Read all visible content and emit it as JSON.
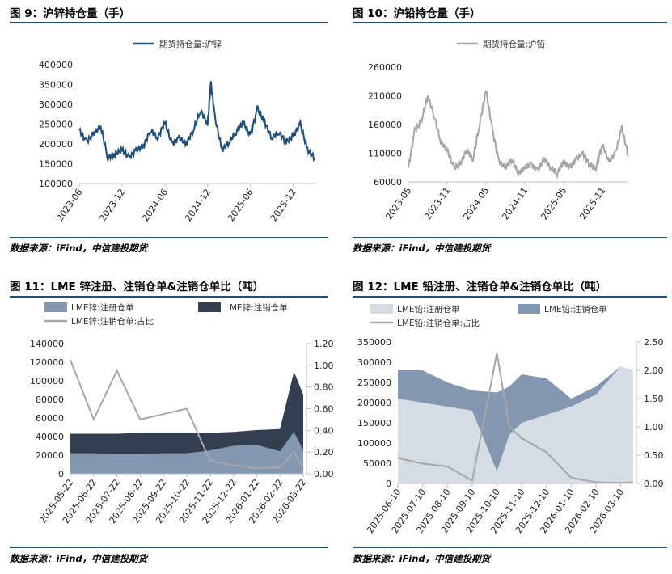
{
  "panels": [
    {
      "title": "图 9：沪锌持仓量（手）",
      "source": "数据来源：iFind，中信建投期货"
    },
    {
      "title": "图 10：沪铅持仓量（手）",
      "source": "数据来源：iFind，中信建投期货"
    },
    {
      "title": "图 11：LME 锌注册、注销仓单&注销仓单比（吨）",
      "source": "数据来源：iFind，中信建投期货"
    },
    {
      "title": "图 12：LME 铅注册、注销仓单&注销仓单比（吨）",
      "source": "数据来源：iFind，中信建投期货"
    }
  ],
  "colors": {
    "rule": "#1f4e79",
    "zn_line": "#1f4e79",
    "pb_line": "#a6a6a6",
    "reg": "#8497b0",
    "cancel": "#333f50",
    "ratio": "#a6a6a6",
    "pb_reg": "#d6dce4",
    "pb_cancel": "#8497b0"
  },
  "chart_data": [
    {
      "type": "line",
      "legend": [
        "期货持仓量:沪锌"
      ],
      "legend_position": "top",
      "x_ticks": [
        "2023-06",
        "2023-12",
        "2024-06",
        "2024-12",
        "2025-06",
        "2025-12"
      ],
      "y_ticks": [
        "100000",
        "150000",
        "200000",
        "250000",
        "300000",
        "350000",
        "400000"
      ],
      "ylim": [
        100000,
        400000
      ],
      "series": [
        {
          "name": "期货持仓量:沪锌",
          "x": [
            "2023-06",
            "2023-07",
            "2023-08",
            "2023-09",
            "2023-10",
            "2023-11",
            "2023-12",
            "2024-01",
            "2024-02",
            "2024-03",
            "2024-04",
            "2024-05",
            "2024-06",
            "2024-07",
            "2024-08",
            "2024-09",
            "2024-10",
            "2024-11",
            "2024-12",
            "2024-12-15",
            "2025-01",
            "2025-02",
            "2025-03",
            "2025-04",
            "2025-05",
            "2025-06",
            "2025-07",
            "2025-08",
            "2025-09",
            "2025-10",
            "2025-11",
            "2025-12",
            "2026-01",
            "2026-02",
            "2026-03"
          ],
          "values": [
            235000,
            205000,
            225000,
            245000,
            165000,
            175000,
            185000,
            165000,
            185000,
            195000,
            235000,
            215000,
            255000,
            200000,
            215000,
            200000,
            235000,
            285000,
            250000,
            355000,
            270000,
            185000,
            205000,
            230000,
            255000,
            220000,
            290000,
            255000,
            215000,
            230000,
            205000,
            220000,
            250000,
            185000,
            165000
          ]
        }
      ]
    },
    {
      "type": "line",
      "legend": [
        "期货持仓量:沪铅"
      ],
      "legend_position": "top",
      "x_ticks": [
        "2023-05",
        "2023-11",
        "2024-05",
        "2024-11",
        "2025-05",
        "2025-11"
      ],
      "y_ticks": [
        "60000",
        "110000",
        "160000",
        "210000",
        "260000"
      ],
      "ylim": [
        60000,
        260000
      ],
      "series": [
        {
          "name": "期货持仓量:沪铅",
          "x": [
            "2023-05",
            "2023-06",
            "2023-07",
            "2023-08",
            "2023-09",
            "2023-10",
            "2023-11",
            "2023-12",
            "2024-01",
            "2024-02",
            "2024-03",
            "2024-04",
            "2024-05",
            "2024-06",
            "2024-07",
            "2024-08",
            "2024-09",
            "2024-10",
            "2024-11",
            "2024-12",
            "2025-01",
            "2025-02",
            "2025-03",
            "2025-04",
            "2025-05",
            "2025-06",
            "2025-07",
            "2025-08",
            "2025-09",
            "2025-10",
            "2025-11",
            "2025-12",
            "2026-01",
            "2026-02",
            "2026-03"
          ],
          "values": [
            85000,
            150000,
            165000,
            210000,
            175000,
            130000,
            115000,
            85000,
            90000,
            115000,
            100000,
            160000,
            220000,
            150000,
            95000,
            85000,
            100000,
            75000,
            85000,
            90000,
            80000,
            100000,
            85000,
            75000,
            95000,
            85000,
            100000,
            110000,
            90000,
            85000,
            125000,
            95000,
            110000,
            155000,
            105000
          ]
        }
      ]
    },
    {
      "type": "area",
      "legend": [
        "LME锌:注册仓单",
        "LME锌:注销仓单",
        "LME锌:注销仓单:占比"
      ],
      "legend_position": "top",
      "x_ticks": [
        "2025-05-22",
        "2025-06-22",
        "2025-07-22",
        "2025-08-22",
        "2025-09-22",
        "2025-10-22",
        "2025-11-22",
        "2025-12-22",
        "2026-01-22",
        "2026-02-22",
        "2026-03-22"
      ],
      "y_ticks": [
        "0",
        "20000",
        "40000",
        "60000",
        "80000",
        "100000",
        "120000",
        "140000"
      ],
      "y2_ticks": [
        "0.00",
        "0.20",
        "0.40",
        "0.60",
        "0.80",
        "1.00",
        "1.20"
      ],
      "ylim": [
        0,
        140000
      ],
      "y2lim": [
        0,
        1.2
      ],
      "x": [
        "2025-05-22",
        "2025-06-22",
        "2025-07-22",
        "2025-08-22",
        "2025-09-22",
        "2025-10-22",
        "2025-11-22",
        "2025-12-22",
        "2026-01-22",
        "2026-02-22",
        "2026-03-10",
        "2026-03-22"
      ],
      "series": [
        {
          "name": "LME锌:注册仓单",
          "kind": "area",
          "values": [
            22000,
            22000,
            21000,
            21000,
            22000,
            22000,
            25000,
            30000,
            31000,
            24000,
            45000,
            25000
          ]
        },
        {
          "name": "LME锌:注销仓单",
          "kind": "area",
          "values": [
            21000,
            21000,
            22000,
            23000,
            22000,
            22000,
            19000,
            15000,
            16000,
            24000,
            65000,
            60000
          ]
        },
        {
          "name": "LME锌:注销仓单:占比",
          "kind": "line",
          "axis": "right",
          "values": [
            1.05,
            0.5,
            0.95,
            0.5,
            0.55,
            0.6,
            0.12,
            0.08,
            0.05,
            0.06,
            0.2,
            0.05
          ]
        }
      ]
    },
    {
      "type": "area",
      "legend": [
        "LME铅:注册仓单",
        "LME铅:注销仓单",
        "LME铅:注销仓单:占比"
      ],
      "legend_position": "top",
      "x_ticks": [
        "2025-06-10",
        "2025-07-10",
        "2025-08-10",
        "2025-09-10",
        "2025-10-10",
        "2025-11-10",
        "2025-12-10",
        "2026-01-10",
        "2026-02-10",
        "2026-03-10"
      ],
      "y_ticks": [
        "0",
        "50000",
        "100000",
        "150000",
        "200000",
        "250000",
        "300000",
        "350000"
      ],
      "y2_ticks": [
        "0.00",
        "0.50",
        "1.00",
        "1.50",
        "2.00",
        "2.50"
      ],
      "ylim": [
        0,
        350000
      ],
      "y2lim": [
        0,
        2.5
      ],
      "x": [
        "2025-06-10",
        "2025-07-10",
        "2025-08-10",
        "2025-09-10",
        "2025-10-10",
        "2025-10-25",
        "2025-11-10",
        "2025-12-10",
        "2026-01-10",
        "2026-02-10",
        "2026-03-10",
        "2026-03-25"
      ],
      "series": [
        {
          "name": "LME铅:注册仓单",
          "kind": "area",
          "values": [
            210000,
            200000,
            190000,
            180000,
            30000,
            120000,
            150000,
            170000,
            190000,
            220000,
            290000,
            280000
          ]
        },
        {
          "name": "LME铅:注销仓单",
          "kind": "area",
          "values": [
            70000,
            80000,
            60000,
            50000,
            195000,
            120000,
            120000,
            90000,
            20000,
            20000,
            0,
            0
          ]
        },
        {
          "name": "LME铅:注销仓单:占比",
          "kind": "line",
          "axis": "right",
          "values": [
            0.45,
            0.35,
            0.3,
            0.05,
            2.3,
            1.0,
            0.8,
            0.55,
            0.1,
            0.02,
            0.01,
            0.02
          ]
        }
      ]
    }
  ]
}
